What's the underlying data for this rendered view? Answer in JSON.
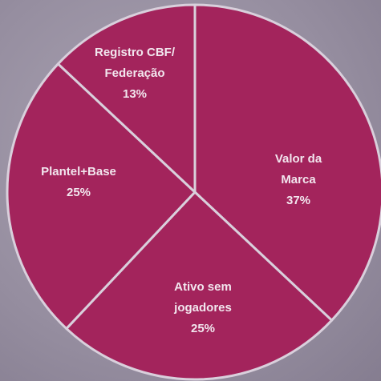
{
  "chart_data": {
    "type": "pie",
    "categories": [
      "Valor da Marca",
      "Ativo sem jogadores",
      "Plantel+Base",
      "Registro CBF/ Federação"
    ],
    "values": [
      37,
      25,
      25,
      13
    ],
    "value_labels": [
      "37%",
      "25%",
      "25%",
      "13%"
    ],
    "color": "#a3245c"
  }
}
